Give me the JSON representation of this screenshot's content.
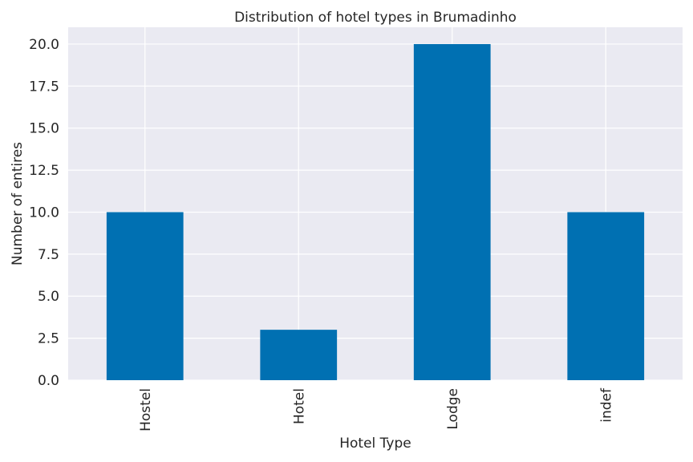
{
  "chart_data": {
    "type": "bar",
    "title": "Distribution of hotel types in Brumadinho",
    "xlabel": "Hotel Type",
    "ylabel": "Number of entires",
    "categories": [
      "Hostel",
      "Hotel",
      "Lodge",
      "indef"
    ],
    "values": [
      10,
      3,
      20,
      10
    ],
    "ylim": [
      0,
      21
    ],
    "yticks": [
      "0.0",
      "2.5",
      "5.0",
      "7.5",
      "10.0",
      "12.5",
      "15.0",
      "17.5",
      "20.0"
    ],
    "grid": true,
    "bar_color": "#0070B2",
    "background_color": "#EAEAF2"
  }
}
